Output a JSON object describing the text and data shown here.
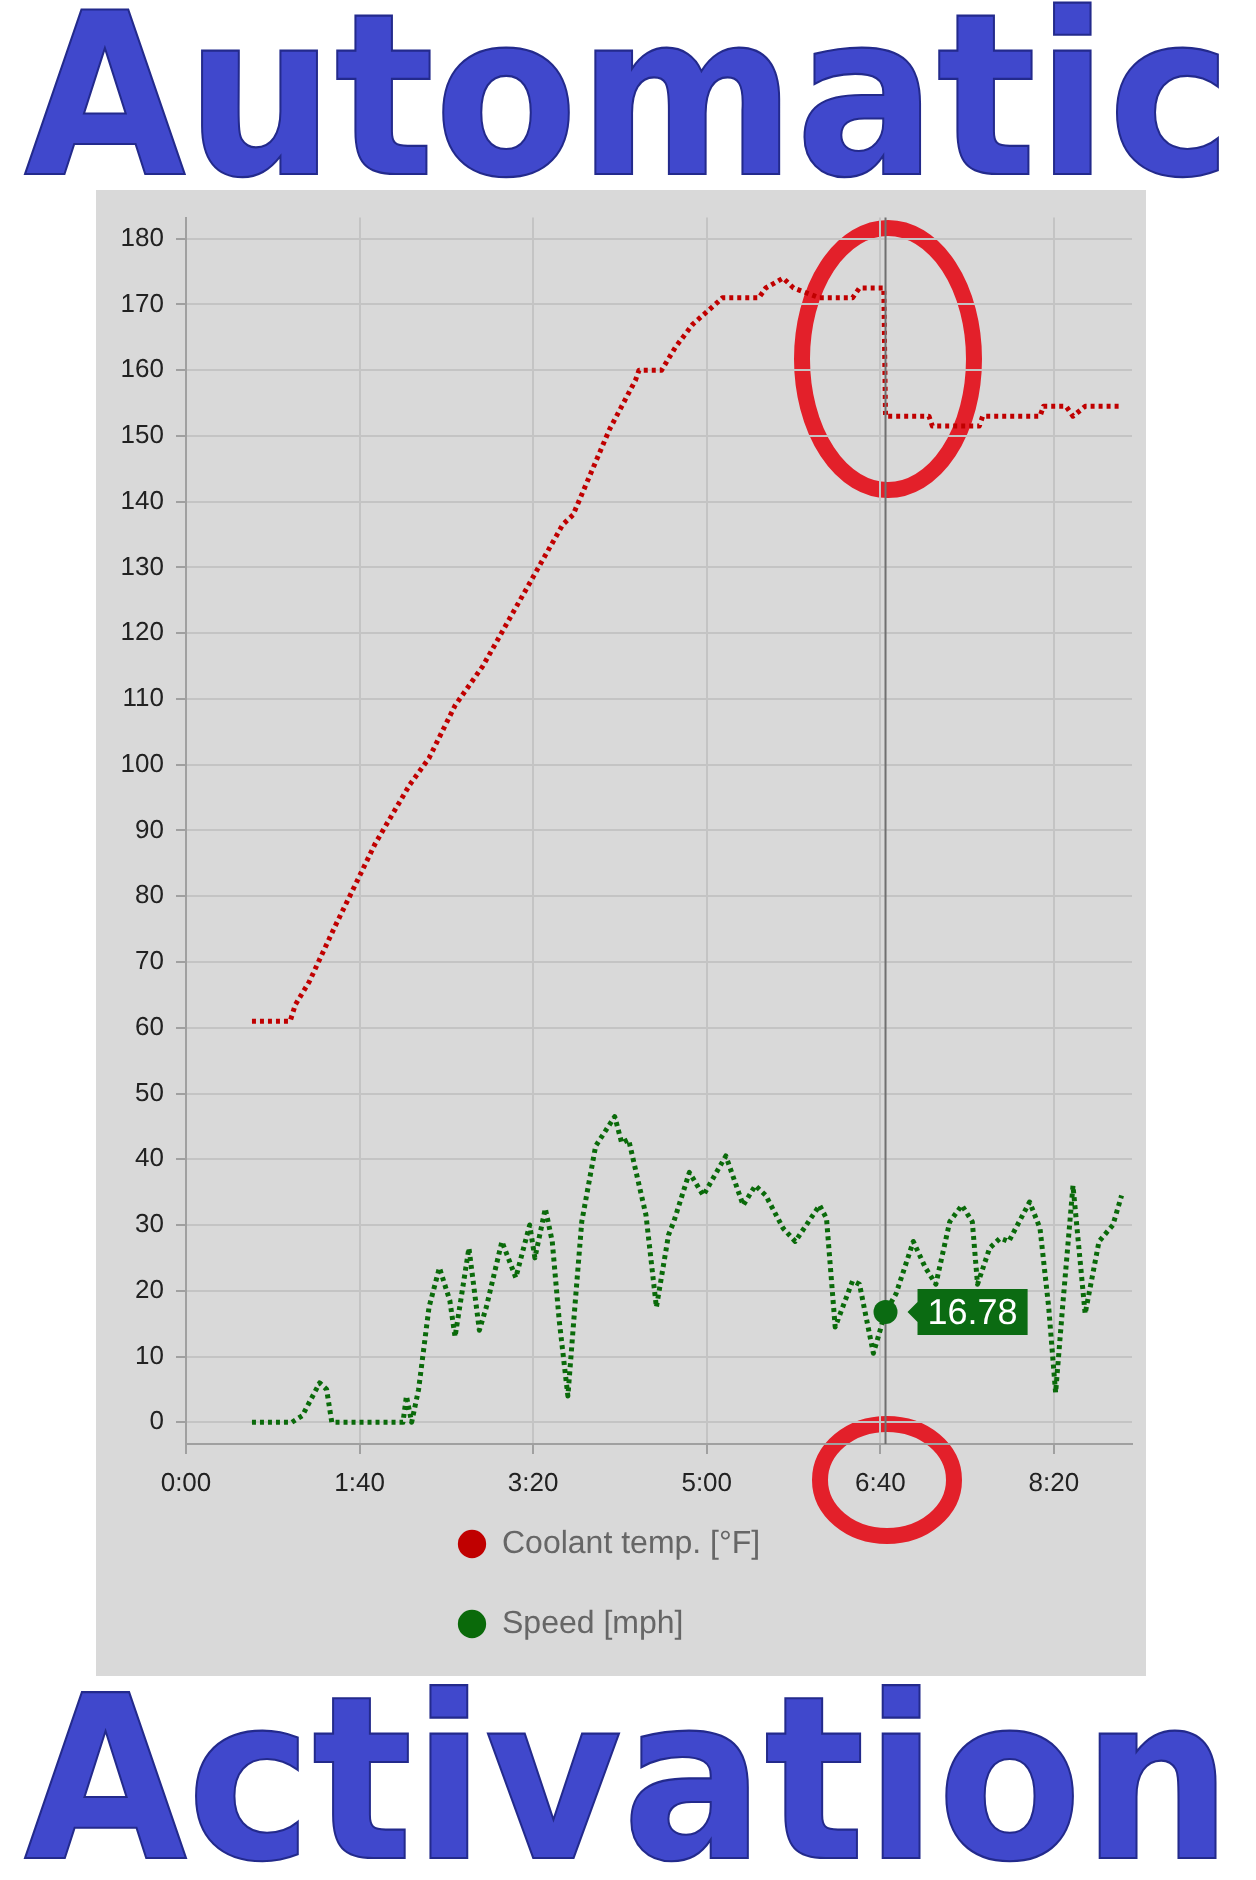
{
  "chart_data": {
    "type": "line",
    "title": "Automatic",
    "subtitle": "Activation",
    "xlim": [
      0,
      545
    ],
    "ylim": [
      -3.3,
      183.2
    ],
    "xticks": [
      {
        "value": 0,
        "label": "0:00"
      },
      {
        "value": 100,
        "label": "1:40"
      },
      {
        "value": 200,
        "label": "3:20"
      },
      {
        "value": 300,
        "label": "5:00"
      },
      {
        "value": 400,
        "label": "6:40"
      },
      {
        "value": 500,
        "label": "8:20"
      }
    ],
    "yticks": [
      0,
      10,
      20,
      30,
      40,
      50,
      60,
      70,
      80,
      90,
      100,
      110,
      120,
      130,
      140,
      150,
      160,
      170,
      180
    ],
    "grid": true,
    "legend": "bottom",
    "marker": "none",
    "line_style": "dotted",
    "series": [
      {
        "name": "Coolant temp. [°F]",
        "color": "#c00000",
        "x": [
          38,
          60,
          63,
          71,
          86,
          98,
          109,
          129,
          140,
          155,
          171,
          202,
          217,
          223,
          244,
          259,
          261,
          274,
          282,
          292,
          307,
          309,
          330,
          334,
          344,
          350,
          365,
          384,
          388,
          402,
          403,
          428,
          430,
          457,
          459,
          492,
          494,
          507,
          511,
          518,
          538
        ],
        "values": [
          61,
          61,
          63.5,
          67,
          75.5,
          82,
          88,
          97,
          101,
          109,
          115,
          129.5,
          136.5,
          138,
          151,
          158.5,
          160,
          160,
          163.5,
          167,
          170.5,
          171,
          171,
          172.5,
          174,
          172.5,
          171,
          171,
          172.5,
          172.5,
          153,
          153,
          151.5,
          151.5,
          153,
          153,
          154.5,
          154.5,
          153,
          154.5,
          154.5
        ]
      },
      {
        "name": "Speed [mph]",
        "color": "#0a6a0a",
        "x": [
          38,
          61,
          67,
          77,
          81,
          84,
          125,
          127,
          130,
          134,
          140,
          146,
          152,
          155,
          163,
          169,
          173,
          182,
          190,
          198,
          201,
          207,
          211,
          215,
          220,
          224,
          228,
          236,
          247,
          251,
          255,
          265,
          271,
          278,
          281,
          290,
          298,
          311,
          321,
          328,
          334,
          344,
          351,
          365,
          369,
          374,
          384,
          388,
          396,
          403,
          409,
          419,
          426,
          432,
          440,
          447,
          453,
          456,
          463,
          469,
          474,
          486,
          492,
          497,
          501,
          505,
          511,
          518,
          526,
          534,
          539
        ],
        "values": [
          0,
          0,
          1,
          6,
          5,
          0,
          0,
          4,
          0,
          5,
          17.5,
          23.5,
          18.5,
          13,
          26.5,
          14,
          17.5,
          27.5,
          22,
          30,
          25,
          32.5,
          27.5,
          15.5,
          4,
          17.5,
          30.5,
          42,
          46.5,
          42.5,
          43,
          31.5,
          17.5,
          28.5,
          30.5,
          38,
          34.5,
          40.5,
          33,
          36,
          34.5,
          29.5,
          27.5,
          33,
          31,
          14.5,
          21.5,
          21,
          10.5,
          16.78,
          19.5,
          27.5,
          23.5,
          21,
          30.5,
          33,
          30.5,
          21,
          26.5,
          28,
          27.5,
          33.5,
          29.5,
          17.5,
          4.5,
          17.5,
          36,
          16.5,
          27.5,
          30,
          34.5
        ]
      }
    ],
    "ref_lines": [
      {
        "axis": "x",
        "value": 403,
        "color": "#707070"
      }
    ],
    "annotations": [
      {
        "text": "16.78",
        "x": 403,
        "y": 16.78
      }
    ]
  }
}
